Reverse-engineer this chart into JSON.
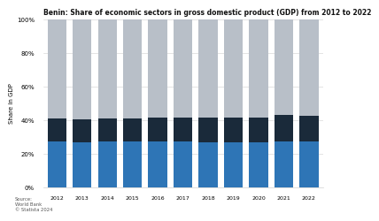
{
  "title": "Benin: Share of economic sectors in gross domestic product (GDP) from 2012 to 2022",
  "years": [
    2012,
    2013,
    2014,
    2015,
    2016,
    2017,
    2018,
    2019,
    2020,
    2021,
    2022
  ],
  "agriculture": [
    27.5,
    27.0,
    27.5,
    27.5,
    27.5,
    27.5,
    27.0,
    27.0,
    27.0,
    27.5,
    27.5
  ],
  "industry": [
    13.5,
    13.5,
    13.5,
    13.5,
    14.0,
    14.0,
    14.5,
    14.5,
    14.5,
    16.0,
    15.5
  ],
  "services": [
    59.0,
    59.5,
    59.0,
    59.0,
    58.5,
    58.5,
    58.5,
    58.5,
    58.5,
    56.5,
    57.0
  ],
  "color_agriculture": "#2e75b6",
  "color_industry": "#1a2a3a",
  "color_services": "#b8bfc8",
  "ylabel": "Share in GDP",
  "source_text": "Source:\nWorld Bank\n© Statista 2024",
  "background_color": "#ffffff",
  "ylim": [
    0,
    100
  ],
  "yticks": [
    0,
    20,
    40,
    60,
    80,
    100
  ],
  "ytick_labels": [
    "0%",
    "20%",
    "40%",
    "60%",
    "80%",
    "100%"
  ]
}
